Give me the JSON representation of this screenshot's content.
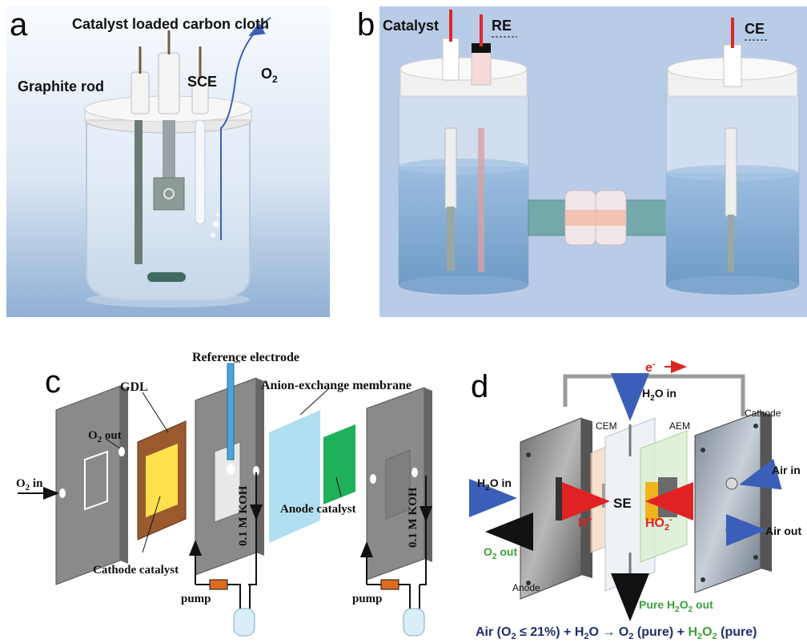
{
  "panel_a": {
    "letter": "a",
    "title": "Catalyst loaded carbon cloth",
    "graphite_rod": "Graphite rod",
    "sce": "SCE",
    "o2": "O",
    "o2_sub": "2",
    "colors": {
      "bg_top": "#f6f9fd",
      "bg_bottom": "#8faed2",
      "o2_line": "#3b5fb8"
    }
  },
  "panel_b": {
    "letter": "b",
    "catalyst": "Catalyst",
    "re": "RE",
    "ce": "CE",
    "colors": {
      "bg": "#b8cbe6",
      "liquid": "#8fb3d6",
      "lead": "#e0262b",
      "bridge": "#74a8aa"
    }
  },
  "panel_c": {
    "letter": "c",
    "reference_electrode": "Reference electrode",
    "anion_membrane": "Anion-exchange membrane",
    "gdl": "GDL",
    "o2_out": "O",
    "o2_out_sub": "2",
    "o2_out_tail": " out",
    "o2_in": "O",
    "o2_in_sub": "2",
    "o2_in_tail": " in",
    "koh_1": "0.1 M KOH",
    "koh_2": "0.1 M KOH",
    "anode_catalyst": "Anode catalyst",
    "cathode_catalyst": "Cathode catalyst",
    "pump_1": "pump",
    "pump_2": "pump",
    "colors": {
      "plate": "#8a8a8a",
      "gdl": "#9a5a2e",
      "catalyst_yellow": "#ffe14d",
      "membrane": "#a8dcf0",
      "anode_green": "#1fb05a"
    }
  },
  "panel_d": {
    "letter": "d",
    "electron": "e",
    "electron_sup": "-",
    "h2o_in_top": "H",
    "h2o_in_top_sub": "2",
    "h2o_in_top_tail": "O in",
    "cem": "CEM",
    "aem": "AEM",
    "cathode": "Cathode",
    "h2o_in_left": "H",
    "h2o_in_left_sub": "2",
    "h2o_in_left_tail": "O in",
    "se": "SE",
    "h_plus": "H",
    "h_plus_sup": "+",
    "ho2": "HO",
    "ho2_sub": "2",
    "ho2_sup": "-",
    "air_in": "Air in",
    "air_out": "Air out",
    "o2_out": "O",
    "o2_out_sub": "2",
    "o2_out_tail": " out",
    "anode": "Anode",
    "pure_h2o2_out": "Pure H",
    "pure_h2o2_sub1": "2",
    "pure_h2o2_mid": "O",
    "pure_h2o2_sub2": "2",
    "pure_h2o2_tail": " out",
    "equation": {
      "p1": "Air (O",
      "p1_sub": "2",
      "p2": " ≤ 21%) + H",
      "p2_sub": "2",
      "p3": "O → O",
      "p3_sub": "2",
      "p4": " (pure) + ",
      "p5": "H",
      "p5_sub": "2",
      "p6": "O",
      "p6_sub": "2",
      "p7": " (pure)"
    },
    "colors": {
      "equation": "#1f2f6e",
      "green": "#3aa13a",
      "red": "#e02222",
      "arrow_blue": "#5aa0e0"
    }
  }
}
